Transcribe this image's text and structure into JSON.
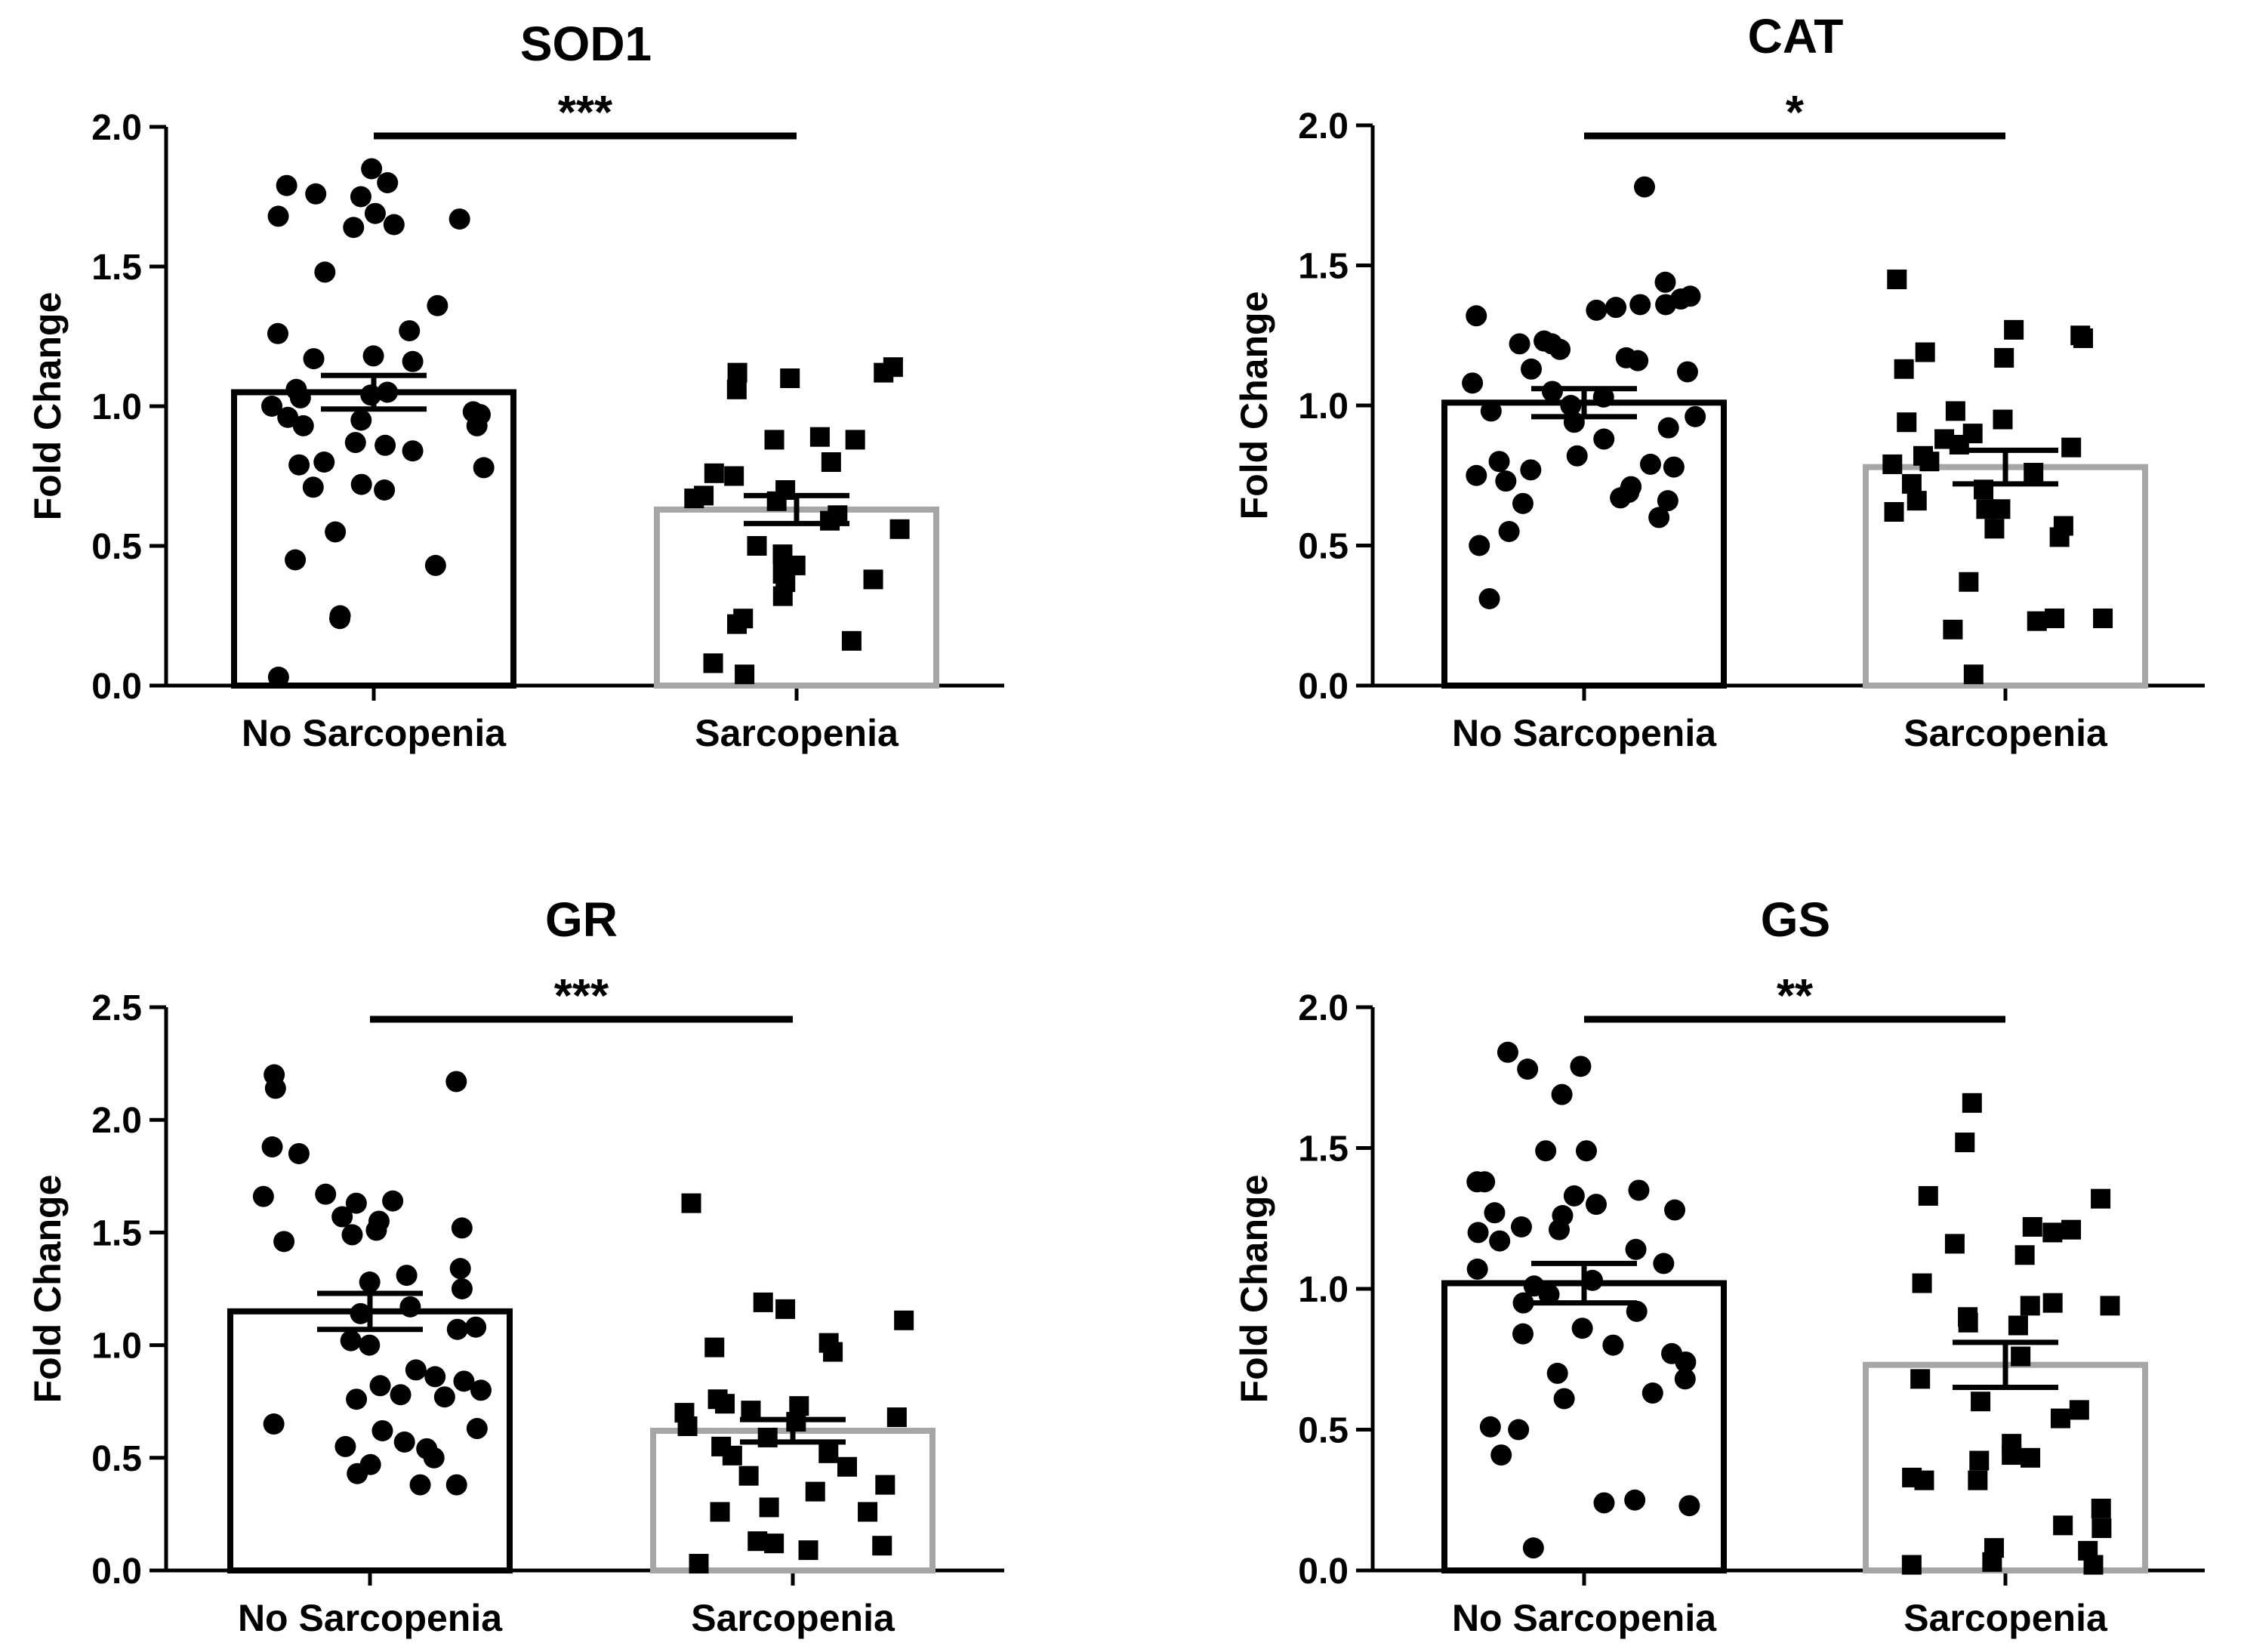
{
  "colors": {
    "axis": "#000000",
    "group1": "#000000",
    "group2": "#a6a6a6",
    "point": "#000000"
  },
  "point_shapes": [
    "circle",
    "square"
  ],
  "chart_data": [
    {
      "type": "scatter-bar",
      "title": "SOD1",
      "ylabel": "Fold Change",
      "ylim": [
        0,
        2.0
      ],
      "yticks": [
        "0.0",
        "0.5",
        "1.0",
        "1.5",
        "2.0"
      ],
      "categories": [
        "No Sarcopenia",
        "Sarcopenia"
      ],
      "means": [
        1.05,
        0.63
      ],
      "sem": [
        0.06,
        0.05
      ],
      "significance": "***",
      "series": [
        {
          "name": "No Sarcopenia",
          "values": [
            1.85,
            1.8,
            1.79,
            1.76,
            1.75,
            1.69,
            1.68,
            1.67,
            1.65,
            1.64,
            1.48,
            1.36,
            1.27,
            1.26,
            1.18,
            1.17,
            1.16,
            1.06,
            1.05,
            1.04,
            1.03,
            1.0,
            0.98,
            0.97,
            0.96,
            0.95,
            0.93,
            0.93,
            0.87,
            0.86,
            0.84,
            0.8,
            0.79,
            0.78,
            0.72,
            0.71,
            0.7,
            0.55,
            0.45,
            0.43,
            0.25,
            0.24,
            0.03
          ]
        },
        {
          "name": "Sarcopenia",
          "values": [
            1.14,
            1.12,
            1.12,
            1.1,
            1.06,
            0.89,
            0.88,
            0.88,
            0.8,
            0.76,
            0.75,
            0.7,
            0.68,
            0.67,
            0.66,
            0.61,
            0.59,
            0.56,
            0.5,
            0.47,
            0.43,
            0.4,
            0.38,
            0.37,
            0.32,
            0.24,
            0.22,
            0.16,
            0.08,
            0.04
          ]
        }
      ]
    },
    {
      "type": "scatter-bar",
      "title": "CAT",
      "ylabel": "Fold Change",
      "ylim": [
        0,
        2.0
      ],
      "yticks": [
        "0.0",
        "0.5",
        "1.0",
        "1.5",
        "2.0"
      ],
      "categories": [
        "No Sarcopenia",
        "Sarcopenia"
      ],
      "means": [
        1.01,
        0.78
      ],
      "sem": [
        0.05,
        0.06
      ],
      "significance": "*",
      "series": [
        {
          "name": "No Sarcopenia",
          "values": [
            1.78,
            1.44,
            1.39,
            1.38,
            1.36,
            1.36,
            1.35,
            1.34,
            1.32,
            1.23,
            1.22,
            1.22,
            1.2,
            1.17,
            1.16,
            1.13,
            1.12,
            1.08,
            1.05,
            1.03,
            1.0,
            0.98,
            0.96,
            0.94,
            0.92,
            0.88,
            0.82,
            0.8,
            0.79,
            0.78,
            0.77,
            0.75,
            0.73,
            0.71,
            0.69,
            0.67,
            0.66,
            0.65,
            0.6,
            0.55,
            0.5,
            0.31
          ]
        },
        {
          "name": "Sarcopenia",
          "values": [
            1.45,
            1.27,
            1.25,
            1.24,
            1.19,
            1.17,
            1.13,
            0.98,
            0.95,
            0.94,
            0.9,
            0.88,
            0.86,
            0.85,
            0.82,
            0.8,
            0.79,
            0.76,
            0.72,
            0.7,
            0.66,
            0.63,
            0.63,
            0.62,
            0.57,
            0.56,
            0.53,
            0.37,
            0.24,
            0.24,
            0.23,
            0.2,
            0.04
          ]
        }
      ]
    },
    {
      "type": "scatter-bar",
      "title": "GR",
      "ylabel": "Fold Change",
      "ylim": [
        0,
        2.5
      ],
      "yticks": [
        "0.0",
        "0.5",
        "1.0",
        "1.5",
        "2.0",
        "2.5"
      ],
      "categories": [
        "No Sarcopenia",
        "Sarcopenia"
      ],
      "means": [
        1.15,
        0.62
      ],
      "sem": [
        0.08,
        0.05
      ],
      "significance": "***",
      "series": [
        {
          "name": "No Sarcopenia",
          "values": [
            2.2,
            2.17,
            2.14,
            1.88,
            1.85,
            1.67,
            1.66,
            1.64,
            1.63,
            1.57,
            1.55,
            1.52,
            1.51,
            1.49,
            1.46,
            1.34,
            1.31,
            1.28,
            1.25,
            1.17,
            1.14,
            1.08,
            1.07,
            1.02,
            1.0,
            0.89,
            0.86,
            0.84,
            0.82,
            0.8,
            0.78,
            0.77,
            0.76,
            0.65,
            0.63,
            0.62,
            0.57,
            0.55,
            0.54,
            0.5,
            0.47,
            0.43,
            0.38,
            0.38
          ]
        },
        {
          "name": "Sarcopenia",
          "values": [
            1.63,
            1.19,
            1.16,
            1.11,
            1.01,
            0.99,
            0.97,
            0.76,
            0.74,
            0.73,
            0.71,
            0.7,
            0.68,
            0.66,
            0.64,
            0.59,
            0.55,
            0.52,
            0.51,
            0.46,
            0.42,
            0.38,
            0.35,
            0.28,
            0.26,
            0.26,
            0.13,
            0.12,
            0.11,
            0.09,
            0.03
          ]
        }
      ]
    },
    {
      "type": "scatter-bar",
      "title": "GS",
      "ylabel": "Fold Change",
      "ylim": [
        0,
        2.0
      ],
      "yticks": [
        "0.0",
        "0.5",
        "1.0",
        "1.5",
        "2.0"
      ],
      "categories": [
        "No Sarcopenia",
        "Sarcopenia"
      ],
      "means": [
        1.02,
        0.73
      ],
      "sem": [
        0.07,
        0.08
      ],
      "significance": "**",
      "series": [
        {
          "name": "No Sarcopenia",
          "values": [
            1.84,
            1.79,
            1.78,
            1.69,
            1.49,
            1.49,
            1.38,
            1.38,
            1.35,
            1.33,
            1.3,
            1.28,
            1.27,
            1.26,
            1.22,
            1.21,
            1.2,
            1.17,
            1.14,
            1.09,
            1.07,
            1.03,
            1.01,
            0.98,
            0.95,
            0.92,
            0.86,
            0.84,
            0.8,
            0.77,
            0.74,
            0.7,
            0.68,
            0.63,
            0.61,
            0.51,
            0.5,
            0.41,
            0.25,
            0.24,
            0.23,
            0.08
          ]
        },
        {
          "name": "Sarcopenia",
          "values": [
            1.66,
            1.52,
            1.33,
            1.32,
            1.22,
            1.21,
            1.2,
            1.16,
            1.12,
            1.02,
            0.95,
            0.94,
            0.94,
            0.9,
            0.88,
            0.87,
            0.76,
            0.68,
            0.6,
            0.57,
            0.54,
            0.45,
            0.41,
            0.4,
            0.39,
            0.33,
            0.32,
            0.32,
            0.22,
            0.16,
            0.15,
            0.08,
            0.07,
            0.03,
            0.02,
            0.02
          ]
        }
      ]
    }
  ]
}
